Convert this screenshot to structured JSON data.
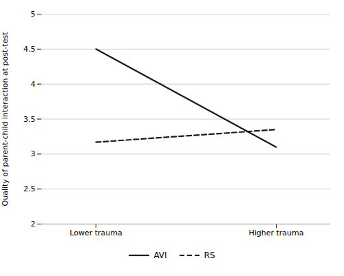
{
  "chart_data": {
    "type": "line",
    "categories": [
      "Lower trauma",
      "Higher trauma"
    ],
    "series": [
      {
        "name": "AVI",
        "color": "#1a1a1a",
        "line_style": "solid",
        "values": [
          4.5,
          3.1
        ]
      },
      {
        "name": "RS",
        "color": "#1a1a1a",
        "line_style": "dashed",
        "values": [
          3.17,
          3.35
        ]
      }
    ],
    "ylabel": "Quality of parent-child interaction at post-test",
    "ylim": [
      2,
      5
    ],
    "yticks": [
      2,
      2.5,
      3,
      3.5,
      4,
      4.5,
      5
    ],
    "grid": true,
    "legend": "bottom"
  }
}
